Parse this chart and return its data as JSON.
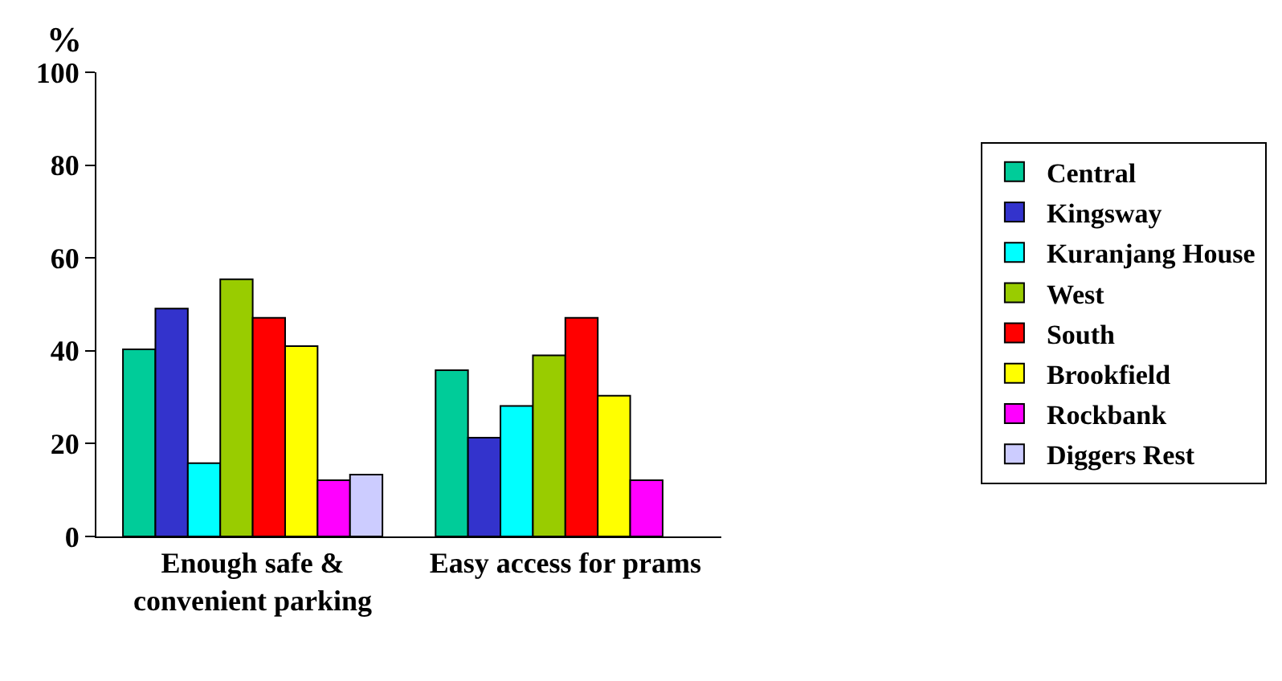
{
  "chart_data": {
    "type": "bar",
    "ylabel": "%",
    "categories": [
      "Enough safe &\nconvenient parking",
      "Easy access for prams"
    ],
    "series": [
      {
        "name": "Central",
        "color": "#00cc99",
        "values": [
          40.3,
          35.8
        ]
      },
      {
        "name": "Kingsway",
        "color": "#3333cc",
        "values": [
          49.1,
          21.3
        ]
      },
      {
        "name": "Kuranjang House",
        "color": "#00ffff",
        "values": [
          15.8,
          28.1
        ]
      },
      {
        "name": "West",
        "color": "#99cc00",
        "values": [
          55.4,
          39.0
        ]
      },
      {
        "name": "South",
        "color": "#ff0000",
        "values": [
          47.1,
          47.1
        ]
      },
      {
        "name": "Brookfield",
        "color": "#ffff00",
        "values": [
          41.0,
          30.3
        ]
      },
      {
        "name": "Rockbank",
        "color": "#ff00ff",
        "values": [
          12.1,
          12.1
        ]
      },
      {
        "name": "Diggers Rest",
        "color": "#ccccff",
        "values": [
          13.3,
          null
        ]
      }
    ],
    "ylim": [
      0,
      100
    ],
    "yticks": [
      0,
      20,
      40,
      60,
      80,
      100
    ],
    "legend": "right"
  }
}
